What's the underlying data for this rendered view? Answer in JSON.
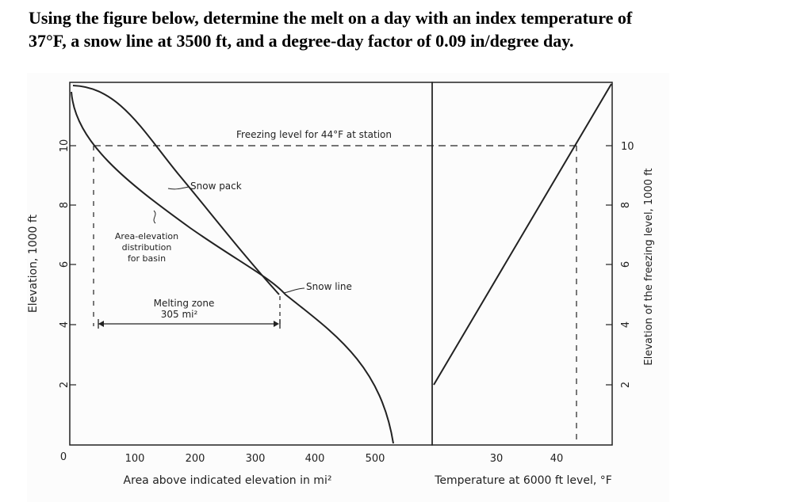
{
  "question": {
    "line1": "Using the figure below, determine the melt on a day with an index temperature of",
    "line2": "37°F, a snow line at 3500 ft, and a degree-day factor of 0.09 in/degree day."
  },
  "figure": {
    "left_panel": {
      "ylabel": "Elevation, 1000 ft",
      "xlabel": "Area above indicated elevation in mi²",
      "y_ticks": [
        "0",
        "2",
        "4",
        "6",
        "8",
        "10"
      ],
      "x_ticks": [
        "100",
        "200",
        "300",
        "400",
        "500"
      ],
      "annotations": {
        "freezing_level": "Freezing level for 44°F at station",
        "snow_pack": "Snow pack",
        "area_elev_line1": "Area-elevation",
        "area_elev_line2": "distribution",
        "area_elev_line3": "for basin",
        "melting_zone_line1": "Melting zone",
        "melting_zone_line2": "305 mi²",
        "snow_line": "Snow line"
      }
    },
    "right_panel": {
      "ylabel": "Elevation of the freezing level, 1000 ft",
      "xlabel": "Temperature at 6000 ft level, °F",
      "y_ticks": [
        "2",
        "4",
        "6",
        "8",
        "10"
      ],
      "x_ticks": [
        "30",
        "40"
      ]
    }
  }
}
